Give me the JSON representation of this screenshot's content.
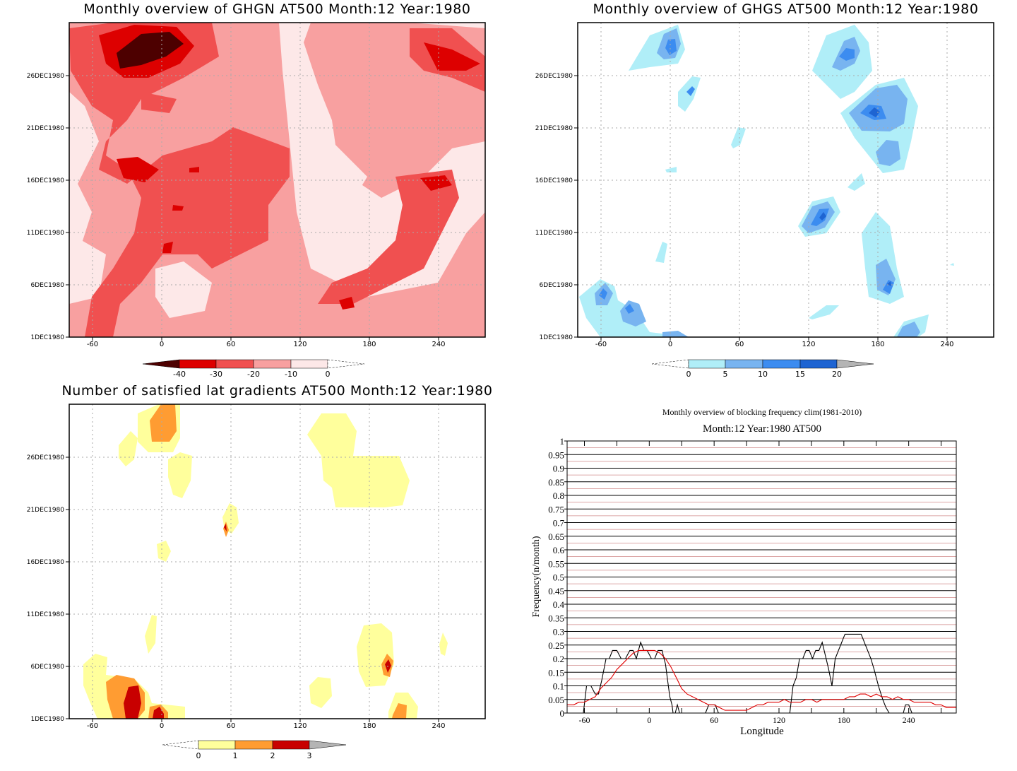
{
  "panels": {
    "ghgn": {
      "title": "Monthly overview of GHGN AT500 Month:12 Year:1980",
      "y_ticks": [
        "1DEC1980",
        "6DEC1980",
        "11DEC1980",
        "16DEC1980",
        "21DEC1980",
        "26DEC1980"
      ],
      "x_ticks": [
        "-60",
        "0",
        "60",
        "120",
        "180",
        "240"
      ],
      "colorbar": {
        "labels": [
          "-40",
          "-30",
          "-20",
          "-10",
          "0"
        ],
        "colors": [
          "#4d0000",
          "#dd0000",
          "#f05050",
          "#f8a0a0",
          "#fde8e8"
        ]
      }
    },
    "ghgs": {
      "title": "Monthly overview of GHGS AT500 Month:12 Year:1980",
      "y_ticks": [
        "1DEC1980",
        "6DEC1980",
        "11DEC1980",
        "16DEC1980",
        "21DEC1980",
        "26DEC1980"
      ],
      "x_ticks": [
        "-60",
        "0",
        "60",
        "120",
        "180",
        "240"
      ],
      "colorbar": {
        "labels": [
          "0",
          "5",
          "10",
          "15",
          "20"
        ],
        "colors": [
          "#b0eef8",
          "#78b4f0",
          "#3c8cf0",
          "#1e64d2",
          "#b4b4b4"
        ]
      }
    },
    "lat": {
      "title": "Number of satisfied lat gradients AT500 Month:12 Year:1980",
      "y_ticks": [
        "1DEC1980",
        "6DEC1980",
        "11DEC1980",
        "16DEC1980",
        "21DEC1980",
        "26DEC1980"
      ],
      "x_ticks": [
        "-60",
        "0",
        "60",
        "120",
        "180",
        "240"
      ],
      "colorbar": {
        "labels": [
          "0",
          "1",
          "2",
          "3"
        ],
        "colors": [
          "#ffff9c",
          "#ff9c32",
          "#c80000",
          "#b4b4b4"
        ]
      }
    },
    "freq": {
      "title": "Monthly overview of blocking frequency clim(1981-2010)",
      "subtitle": "Month:12 Year:1980  AT500",
      "ylabel": "Frequency(n/month)",
      "xlabel": "Longitude"
    }
  },
  "chart_data": [
    {
      "type": "heatmap",
      "title": "Monthly overview of GHGN AT500 Month:12 Year:1980",
      "xlim": [
        -76,
        284
      ],
      "y_dates": [
        "1DEC1980",
        "6DEC1980",
        "11DEC1980",
        "16DEC1980",
        "21DEC1980",
        "26DEC1980"
      ],
      "levels": [
        -40,
        -30,
        -20,
        -10,
        0
      ]
    },
    {
      "type": "heatmap",
      "title": "Monthly overview of GHGS AT500 Month:12 Year:1980",
      "xlim": [
        -76,
        284
      ],
      "y_dates": [
        "1DEC1980",
        "6DEC1980",
        "11DEC1980",
        "16DEC1980",
        "21DEC1980",
        "26DEC1980"
      ],
      "levels": [
        0,
        5,
        10,
        15,
        20
      ]
    },
    {
      "type": "heatmap",
      "title": "Number of satisfied lat gradients AT500 Month:12 Year:1980",
      "xlim": [
        -76,
        284
      ],
      "y_dates": [
        "1DEC1980",
        "6DEC1980",
        "11DEC1980",
        "16DEC1980",
        "21DEC1980",
        "26DEC1980"
      ],
      "levels": [
        0,
        1,
        2,
        3
      ]
    },
    {
      "type": "line",
      "title": "Monthly overview of blocking frequency clim(1981-2010)",
      "subtitle": "Month:12 Year:1980  AT500",
      "xlabel": "Longitude",
      "ylabel": "Frequency(n/month)",
      "xlim": [
        -76,
        284
      ],
      "ylim": [
        0,
        1
      ],
      "x_ticks": [
        -60,
        0,
        60,
        120,
        180,
        240
      ],
      "y_ticks": [
        "0",
        "0.05",
        "0.1",
        "0.15",
        "0.2",
        "0.25",
        "0.3",
        "0.35",
        "0.4",
        "0.45",
        "0.5",
        "0.55",
        "0.6",
        "0.65",
        "0.7",
        "0.75",
        "0.8",
        "0.85",
        "0.9",
        "0.95",
        "1"
      ],
      "series": [
        {
          "color": "#000000",
          "x": [
            -61,
            -58,
            -54,
            -50,
            -47,
            -44,
            -40,
            -37,
            -34,
            -30,
            -26,
            -22,
            -18,
            -15,
            -12,
            -10,
            -8,
            -5,
            -2,
            2,
            5,
            8,
            12,
            13,
            15,
            17,
            19,
            21,
            22,
            24,
            26,
            28,
            30
          ],
          "y": [
            0,
            0.1,
            0.1,
            0.07,
            0.07,
            0.12,
            0.2,
            0.2,
            0.23,
            0.23,
            0.2,
            0.2,
            0.23,
            0.23,
            0.2,
            0.23,
            0.26,
            0.23,
            0.23,
            0.2,
            0.2,
            0.23,
            0.23,
            0.21,
            0.18,
            0.12,
            0.06,
            0.03,
            0,
            0,
            0.03,
            0,
            0
          ]
        },
        {
          "color": "#000000",
          "x": [
            52,
            55,
            58,
            61,
            64,
            66
          ],
          "y": [
            0,
            0.03,
            0.03,
            0.03,
            0,
            0
          ]
        },
        {
          "color": "#000000",
          "x": [
            130,
            133,
            136,
            139,
            142,
            145,
            148,
            151,
            154,
            157,
            160,
            163,
            166,
            169,
            172,
            175,
            178,
            181,
            184,
            187,
            190,
            193,
            196,
            199,
            202,
            205,
            208,
            212,
            216,
            219,
            222,
            226
          ],
          "y": [
            0,
            0.1,
            0.13,
            0.2,
            0.2,
            0.23,
            0.23,
            0.2,
            0.23,
            0.23,
            0.26,
            0.21,
            0.16,
            0.1,
            0.2,
            0.23,
            0.26,
            0.29,
            0.29,
            0.29,
            0.29,
            0.29,
            0.29,
            0.26,
            0.23,
            0.2,
            0.16,
            0.1,
            0.05,
            0.02,
            0,
            0
          ]
        },
        {
          "color": "#000000",
          "x": [
            235,
            237,
            240,
            243,
            246
          ],
          "y": [
            0,
            0.03,
            0.03,
            0,
            0
          ]
        },
        {
          "color": "#e00000",
          "x": [
            -76,
            -70,
            -65,
            -60,
            -55,
            -50,
            -45,
            -40,
            -35,
            -30,
            -25,
            -20,
            -15,
            -10,
            -5,
            0,
            5,
            10,
            15,
            20,
            25,
            30,
            35,
            40,
            45,
            50,
            55,
            60,
            65,
            70,
            75,
            80,
            85,
            90,
            95,
            100,
            105,
            110,
            115,
            120,
            125,
            130,
            135,
            140,
            145,
            150,
            155,
            160,
            165,
            170,
            175,
            180,
            185,
            190,
            195,
            200,
            205,
            210,
            215,
            220,
            225,
            230,
            235,
            240,
            245,
            250,
            255,
            260,
            265,
            270,
            275,
            280,
            284
          ],
          "y": [
            0.03,
            0.03,
            0.04,
            0.04,
            0.05,
            0.06,
            0.09,
            0.11,
            0.13,
            0.16,
            0.18,
            0.2,
            0.22,
            0.23,
            0.23,
            0.23,
            0.23,
            0.22,
            0.2,
            0.17,
            0.13,
            0.09,
            0.07,
            0.06,
            0.05,
            0.04,
            0.03,
            0.03,
            0.02,
            0.01,
            0.01,
            0.01,
            0.01,
            0.01,
            0.02,
            0.03,
            0.03,
            0.04,
            0.04,
            0.04,
            0.05,
            0.04,
            0.04,
            0.04,
            0.05,
            0.05,
            0.04,
            0.05,
            0.05,
            0.05,
            0.05,
            0.05,
            0.06,
            0.06,
            0.07,
            0.07,
            0.06,
            0.07,
            0.06,
            0.06,
            0.05,
            0.06,
            0.05,
            0.05,
            0.04,
            0.04,
            0.04,
            0.04,
            0.03,
            0.03,
            0.02,
            0.02,
            0.02
          ]
        }
      ]
    }
  ]
}
